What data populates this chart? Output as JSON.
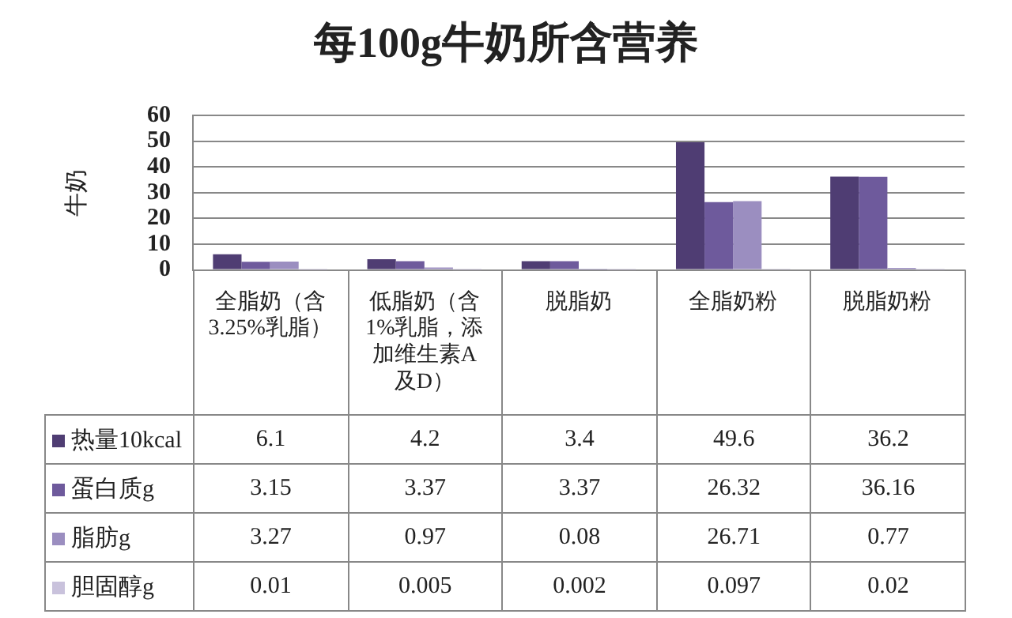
{
  "chart_data": {
    "type": "bar",
    "title": "每100g牛奶所含营养",
    "ylabel": "牛奶",
    "categories": [
      "全脂奶（含3.25%乳脂）",
      "低脂奶（含1%乳脂，添加维生素A及D）",
      "脱脂奶",
      "全脂奶粉",
      "脱脂奶粉"
    ],
    "series": [
      {
        "name": "热量10kcal",
        "color": "#4f3d73",
        "values": [
          6.1,
          4.2,
          3.4,
          49.6,
          36.2
        ]
      },
      {
        "name": "蛋白质g",
        "color": "#6e5a9c",
        "values": [
          3.15,
          3.37,
          3.37,
          26.32,
          36.16
        ]
      },
      {
        "name": "脂肪g",
        "color": "#9b8ec0",
        "values": [
          3.27,
          0.97,
          0.08,
          26.71,
          0.77
        ]
      },
      {
        "name": "胆固醇g",
        "color": "#c9c2dc",
        "values": [
          0.01,
          0.005,
          0.002,
          0.097,
          0.02
        ]
      }
    ],
    "ylim": [
      0,
      60
    ],
    "yticks": [
      0,
      10,
      20,
      30,
      40,
      50,
      60
    ],
    "grid": "y",
    "legend": "bottom",
    "data_labels": true
  }
}
